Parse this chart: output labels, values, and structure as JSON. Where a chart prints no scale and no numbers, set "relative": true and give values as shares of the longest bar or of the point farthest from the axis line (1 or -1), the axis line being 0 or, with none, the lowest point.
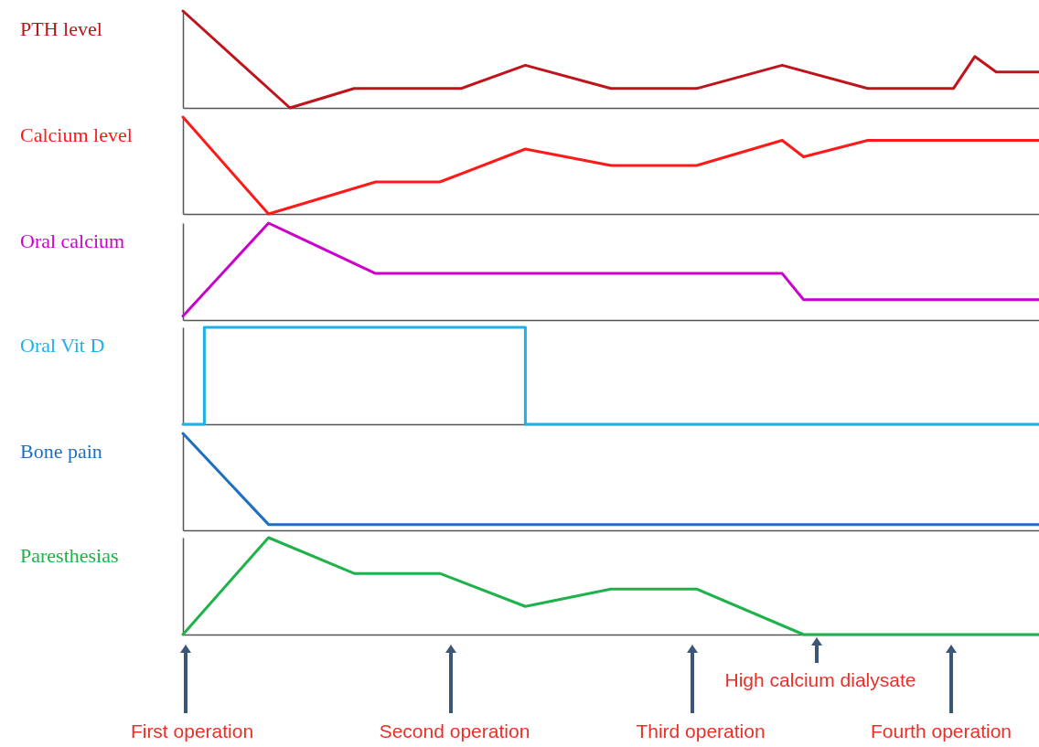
{
  "chart_data": [
    {
      "type": "line",
      "title": "PTH level",
      "relative": true,
      "categories": [
        null,
        null,
        null,
        null,
        null,
        null,
        null,
        null,
        null,
        null,
        null,
        null,
        null,
        null,
        null,
        null,
        null,
        null,
        null,
        null,
        null,
        null,
        null,
        null,
        null,
        null,
        null,
        null,
        null,
        null,
        null,
        null,
        null,
        null,
        null,
        null,
        null,
        null,
        null,
        null,
        null
      ],
      "series": [
        {
          "color": "#c0141c",
          "values": [
            1,
            null,
            null,
            null,
            null,
            0,
            null,
            null,
            0.2,
            null,
            null,
            null,
            null,
            0.2,
            null,
            null,
            0.44,
            null,
            null,
            null,
            0.2,
            null,
            null,
            null,
            0.2,
            null,
            null,
            null,
            0.44,
            null,
            null,
            null,
            0.2,
            null,
            null,
            null,
            0.2,
            0.53,
            0.37,
            null,
            0.37
          ]
        }
      ]
    },
    {
      "type": "line",
      "title": "Calcium level",
      "relative": true,
      "categories": [
        null,
        null,
        null,
        null,
        null,
        null,
        null,
        null,
        null,
        null,
        null,
        null,
        null,
        null,
        null,
        null,
        null,
        null,
        null,
        null,
        null,
        null,
        null,
        null,
        null,
        null,
        null,
        null,
        null,
        null,
        null,
        null,
        null,
        null,
        null,
        null,
        null,
        null,
        null,
        null,
        null
      ],
      "series": [
        {
          "color": "#ff1a1a",
          "values": [
            1,
            null,
            null,
            null,
            0,
            null,
            null,
            null,
            null,
            0.33,
            null,
            null,
            0.33,
            null,
            null,
            null,
            0.67,
            null,
            null,
            null,
            0.5,
            null,
            null,
            null,
            0.5,
            null,
            null,
            null,
            0.76,
            0.59,
            null,
            null,
            0.76,
            null,
            null,
            null,
            null,
            null,
            null,
            null,
            0.76
          ]
        }
      ]
    },
    {
      "type": "line",
      "title": "Oral calcium",
      "relative": true,
      "categories": [
        null,
        null,
        null,
        null,
        null,
        null,
        null,
        null,
        null,
        null,
        null,
        null,
        null,
        null,
        null,
        null,
        null,
        null,
        null,
        null,
        null,
        null,
        null,
        null,
        null,
        null,
        null,
        null,
        null,
        null,
        null,
        null,
        null,
        null,
        null,
        null,
        null,
        null,
        null,
        null,
        null
      ],
      "series": [
        {
          "color": "#cc00cc",
          "values": [
            0.04,
            null,
            null,
            null,
            1,
            null,
            null,
            null,
            null,
            0.48,
            null,
            null,
            null,
            null,
            null,
            null,
            null,
            null,
            null,
            null,
            null,
            null,
            null,
            null,
            null,
            null,
            null,
            null,
            0.48,
            0.21,
            null,
            null,
            null,
            null,
            null,
            null,
            null,
            null,
            null,
            null,
            0.21
          ]
        }
      ]
    },
    {
      "type": "step",
      "title": "Oral Vit D",
      "relative": true,
      "categories": [
        null,
        null,
        null,
        null,
        null,
        null,
        null,
        null,
        null,
        null,
        null,
        null,
        null,
        null,
        null,
        null,
        null,
        null,
        null,
        null,
        null,
        null,
        null,
        null,
        null,
        null,
        null,
        null,
        null,
        null,
        null,
        null,
        null,
        null,
        null,
        null,
        null,
        null,
        null,
        null,
        null
      ],
      "series": [
        {
          "color": "#1ab2e8",
          "values": [
            0,
            1,
            null,
            null,
            null,
            null,
            null,
            null,
            null,
            null,
            null,
            null,
            null,
            null,
            null,
            null,
            0,
            null,
            null,
            null,
            null,
            null,
            null,
            null,
            null,
            null,
            null,
            null,
            null,
            null,
            null,
            null,
            null,
            null,
            null,
            null,
            null,
            null,
            null,
            null,
            0
          ]
        }
      ]
    },
    {
      "type": "line",
      "title": "Bone pain",
      "relative": true,
      "categories": [
        null,
        null,
        null,
        null,
        null,
        null,
        null,
        null,
        null,
        null,
        null,
        null,
        null,
        null,
        null,
        null,
        null,
        null,
        null,
        null,
        null,
        null,
        null,
        null,
        null,
        null,
        null,
        null,
        null,
        null,
        null,
        null,
        null,
        null,
        null,
        null,
        null,
        null,
        null,
        null,
        null
      ],
      "series": [
        {
          "color": "#1f6fc0",
          "values": [
            1,
            null,
            null,
            null,
            0.06,
            null,
            null,
            null,
            null,
            null,
            null,
            null,
            null,
            null,
            null,
            null,
            null,
            null,
            null,
            null,
            null,
            null,
            null,
            null,
            null,
            null,
            null,
            null,
            null,
            null,
            null,
            null,
            null,
            null,
            null,
            null,
            null,
            null,
            null,
            null,
            0.06
          ]
        }
      ]
    },
    {
      "type": "line",
      "title": "Paresthesias",
      "relative": true,
      "categories": [
        null,
        null,
        null,
        null,
        null,
        null,
        null,
        null,
        null,
        null,
        null,
        null,
        null,
        null,
        null,
        null,
        null,
        null,
        null,
        null,
        null,
        null,
        null,
        null,
        null,
        null,
        null,
        null,
        null,
        null,
        null,
        null,
        null,
        null,
        null,
        null,
        null,
        null,
        null,
        null,
        null
      ],
      "series": [
        {
          "color": "#1db34a",
          "values": [
            0,
            null,
            null,
            null,
            1,
            null,
            null,
            null,
            0.63,
            null,
            null,
            null,
            0.63,
            null,
            null,
            null,
            0.29,
            null,
            null,
            null,
            0.47,
            null,
            null,
            null,
            0.47,
            null,
            null,
            null,
            null,
            0,
            null,
            null,
            null,
            null,
            null,
            null,
            null,
            null,
            null,
            null,
            0
          ]
        }
      ],
      "annotations": [
        "First operation",
        "Second operation",
        "Third operation",
        "High calcium dialysate",
        "Fourth operation"
      ]
    }
  ]
}
